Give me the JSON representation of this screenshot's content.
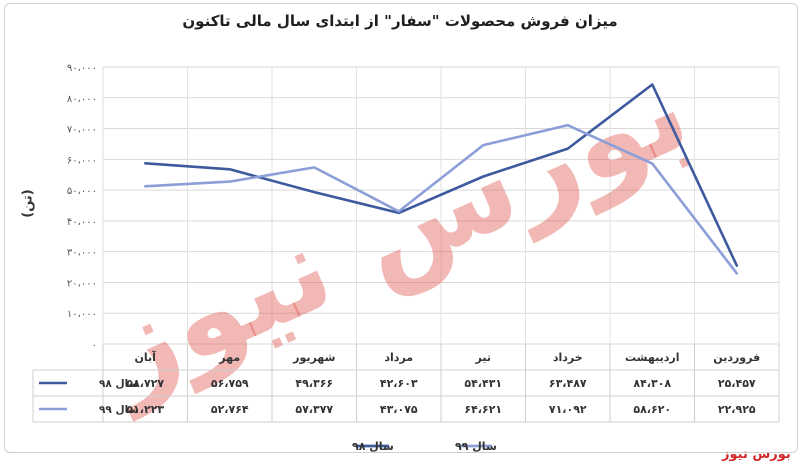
{
  "title": "میزان فروش محصولات \"سفار\" از ابتدای سال مالی تاکنون",
  "watermark": "بورس نیوز",
  "chart_data": {
    "type": "line",
    "title": "میزان فروش محصولات \"سفار\" از ابتدای سال مالی تاکنون",
    "ylabel": "(تن)",
    "xlabel": "",
    "ylim": [
      0,
      90000
    ],
    "yticks": [
      0,
      10000,
      20000,
      30000,
      40000,
      50000,
      60000,
      70000,
      80000,
      90000
    ],
    "ytick_labels": [
      "۰",
      "۱۰،۰۰۰",
      "۲۰،۰۰۰",
      "۳۰،۰۰۰",
      "۴۰،۰۰۰",
      "۵۰،۰۰۰",
      "۶۰،۰۰۰",
      "۷۰،۰۰۰",
      "۸۰،۰۰۰",
      "۹۰،۰۰۰"
    ],
    "categories": [
      "فروردین",
      "اردیبهشت",
      "خرداد",
      "تیر",
      "مرداد",
      "شهریور",
      "مهر",
      "آبان"
    ],
    "grid": true,
    "legend_position": "bottom",
    "series": [
      {
        "name": "سال ۹۸",
        "color": "#3d5a9e",
        "values": [
          25457,
          84308,
          63487,
          54431,
          42603,
          49366,
          56759,
          58727
        ],
        "labels": [
          "۲۵،۴۵۷",
          "۸۴،۳۰۸",
          "۶۳،۴۸۷",
          "۵۴،۴۳۱",
          "۴۲،۶۰۳",
          "۴۹،۳۶۶",
          "۵۶،۷۵۹",
          "۵۸،۷۲۷"
        ]
      },
      {
        "name": "سال ۹۹",
        "color": "#8c9ed8",
        "values": [
          22925,
          58620,
          71092,
          64621,
          43075,
          57377,
          52764,
          51223
        ],
        "labels": [
          "۲۲،۹۲۵",
          "۵۸،۶۲۰",
          "۷۱،۰۹۲",
          "۶۴،۶۲۱",
          "۴۳،۰۷۵",
          "۵۷،۳۷۷",
          "۵۲،۷۶۴",
          "۵۱،۲۲۳"
        ]
      }
    ]
  }
}
